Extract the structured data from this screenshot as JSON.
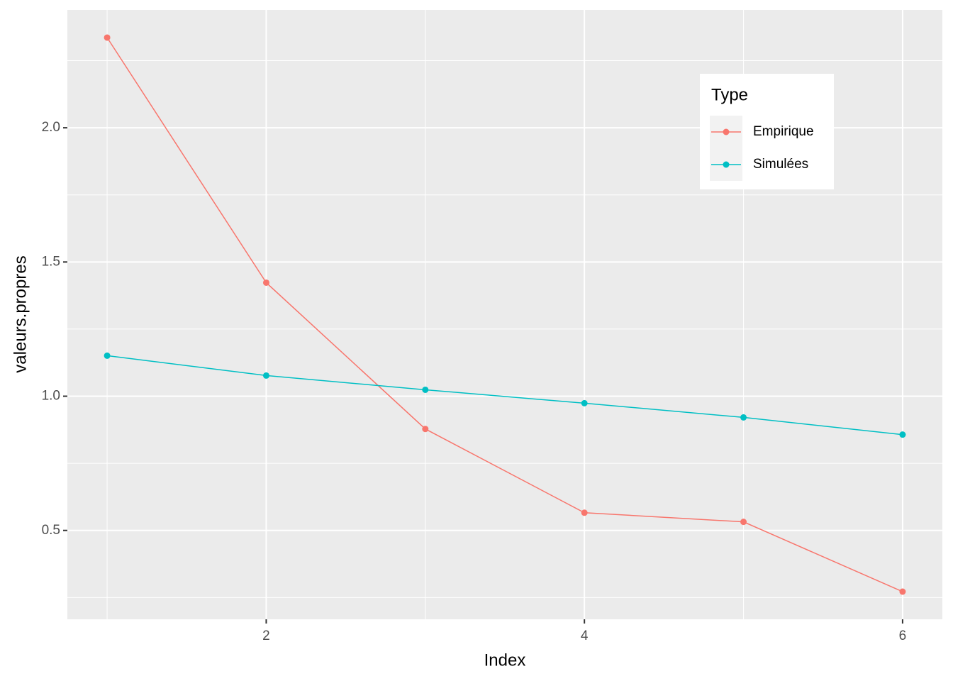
{
  "chart_data": {
    "type": "line",
    "x_label": "Index",
    "y_label": "valeurs.propres",
    "x": [
      1,
      2,
      3,
      4,
      5,
      6
    ],
    "series": [
      {
        "name": "Empirique",
        "color": "#F8766D",
        "values": [
          2.336,
          1.423,
          0.878,
          0.566,
          0.532,
          0.272
        ]
      },
      {
        "name": "Simulées",
        "color": "#00BFC4",
        "values": [
          1.151,
          1.077,
          1.024,
          0.974,
          0.921,
          0.857
        ]
      }
    ],
    "xlim": [
      0.75,
      6.25
    ],
    "xticks": [
      2,
      4,
      6
    ],
    "ylim": [
      0.169,
      2.439
    ],
    "yticks": [
      {
        "value": 0.5,
        "label": "0.5"
      },
      {
        "value": 1,
        "label": "1.0"
      },
      {
        "value": 1.5,
        "label": "1.5"
      },
      {
        "value": 2,
        "label": "2.0"
      }
    ],
    "legend_title": "Type",
    "legend": "top-right",
    "grid": true
  }
}
